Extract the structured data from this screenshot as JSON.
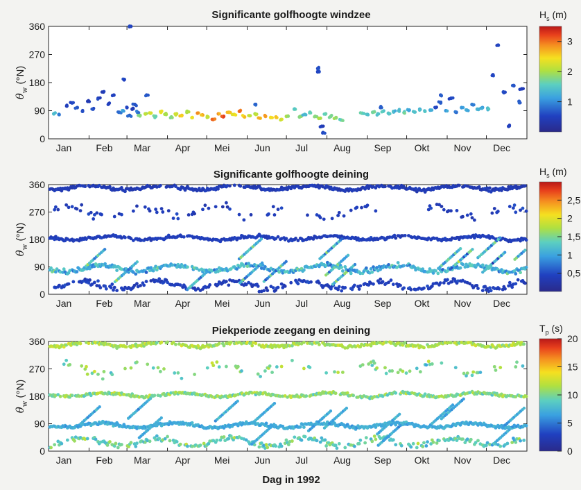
{
  "xlabel": "Dag in 1992",
  "chart_data": [
    {
      "type": "scatter",
      "title": "Significante golfhoogte windzee",
      "ylabel": "θw (°N)",
      "ylabel_main": "θ",
      "ylabel_sub": "w",
      "ylabel_unit": " (°N)",
      "xlim": [
        0,
        366
      ],
      "ylim": [
        0,
        360
      ],
      "yticks": [
        "0",
        "90",
        "180",
        "270",
        "360"
      ],
      "colorbar": {
        "label_main": "H",
        "label_sub": "s",
        "label_unit": " (m)",
        "range": [
          0,
          3.5
        ],
        "ticks": [
          "1",
          "2",
          "3"
        ]
      },
      "series_note": "windzee",
      "series": [
        {
          "x": [
            4,
            8,
            14,
            18,
            22,
            26,
            30,
            34,
            38,
            42,
            46,
            50,
            54,
            57,
            60,
            62,
            64,
            66,
            68
          ],
          "y": [
            80,
            78,
            105,
            115,
            100,
            88,
            120,
            95,
            130,
            150,
            112,
            140,
            85,
            90,
            100,
            75,
            95,
            110,
            85
          ],
          "c": [
            1.4,
            0.8,
            0.5,
            0.6,
            0.7,
            0.6,
            0.4,
            0.6,
            0.5,
            0.4,
            0.5,
            0.5,
            0.8,
            1.2,
            0.5,
            0.7,
            0.4,
            0.6,
            0.9
          ]
        },
        {
          "x": [
            70,
            74,
            78,
            82,
            86,
            90,
            94,
            98,
            102,
            106,
            110,
            114,
            118,
            122,
            126,
            130,
            134,
            138,
            142,
            146,
            150,
            154,
            158,
            162,
            166,
            170,
            174,
            178,
            182
          ],
          "y": [
            75,
            80,
            82,
            72,
            85,
            78,
            70,
            80,
            75,
            88,
            68,
            82,
            76,
            70,
            62,
            80,
            72,
            85,
            78,
            88,
            70,
            74,
            80,
            66,
            72,
            68,
            70,
            62,
            72
          ],
          "c": [
            1.8,
            2.0,
            2.2,
            1.6,
            2.4,
            2.0,
            1.8,
            2.2,
            2.6,
            2.0,
            2.4,
            2.8,
            2.6,
            2.2,
            3.0,
            2.8,
            3.2,
            2.6,
            2.4,
            3.0,
            2.6,
            2.2,
            2.0,
            2.6,
            2.8,
            2.4,
            2.6,
            2.2,
            2.0
          ]
        },
        {
          "x": [
            188,
            192,
            196,
            200,
            204,
            208,
            212,
            216,
            220,
            224
          ],
          "y": [
            95,
            70,
            78,
            85,
            72,
            66,
            80,
            72,
            68,
            60
          ],
          "c": [
            1.6,
            1.8,
            1.4,
            1.6,
            1.8,
            2.0,
            1.6,
            1.8,
            1.9,
            1.7
          ]
        },
        {
          "x": [
            240,
            244,
            248,
            252,
            256,
            260,
            264,
            268,
            272,
            276,
            280,
            284,
            288,
            292
          ],
          "y": [
            82,
            78,
            85,
            80,
            88,
            82,
            86,
            90,
            84,
            92,
            86,
            95,
            88,
            92
          ],
          "c": [
            1.6,
            1.5,
            1.7,
            1.4,
            1.6,
            1.5,
            1.3,
            1.4,
            1.6,
            1.2,
            1.4,
            1.3,
            1.5,
            1.2
          ]
        },
        {
          "x": [
            296,
            300,
            304,
            308,
            312,
            316,
            320,
            324,
            328,
            332,
            336,
            340,
            344,
            348,
            352,
            356,
            360,
            362
          ],
          "y": [
            100,
            115,
            90,
            130,
            85,
            100,
            92,
            110,
            95,
            100,
            98,
            205,
            300,
            150,
            40,
            170,
            120,
            160
          ],
          "c": [
            0.6,
            0.7,
            1.2,
            0.6,
            0.8,
            1.1,
            1.2,
            0.9,
            1.3,
            1.1,
            1.4,
            0.5,
            0.5,
            0.6,
            0.5,
            0.6,
            0.7,
            0.5
          ]
        },
        {
          "x": [
            58,
            63,
            75,
            206,
            207,
            210,
            209,
            158,
            254,
            300
          ],
          "y": [
            190,
            360,
            140,
            225,
            215,
            20,
            40,
            110,
            100,
            140
          ],
          "c": [
            0.6,
            0.5,
            0.6,
            0.6,
            0.6,
            0.6,
            0.5,
            0.8,
            0.7,
            0.6
          ]
        }
      ]
    },
    {
      "type": "scatter",
      "title": "Significante golfhoogte deining",
      "ylabel": "θw (°N)",
      "ylabel_main": "θ",
      "ylabel_sub": "w",
      "ylabel_unit": " (°N)",
      "xlim": [
        0,
        366
      ],
      "ylim": [
        0,
        360
      ],
      "yticks": [
        "0",
        "90",
        "180",
        "270",
        "360"
      ],
      "colorbar": {
        "label_main": "H",
        "label_sub": "s",
        "label_unit": " (m)",
        "range": [
          0,
          3
        ],
        "ticks": [
          "0,5",
          "1",
          "1,5",
          "2",
          "2,5"
        ]
      },
      "bands": [
        {
          "y_center": 350,
          "spread": 14,
          "c_center": 0.35,
          "c_spread": 0.15,
          "density": 1.0
        },
        {
          "y_center": 185,
          "spread": 12,
          "c_center": 0.4,
          "c_spread": 0.15,
          "density": 0.9
        },
        {
          "y_center": 85,
          "spread": 20,
          "c_center": 1.1,
          "c_spread": 0.6,
          "density": 0.9
        },
        {
          "y_center": 30,
          "spread": 25,
          "c_center": 0.4,
          "c_spread": 0.2,
          "density": 0.6
        },
        {
          "y_center": 270,
          "spread": 35,
          "c_center": 0.4,
          "c_spread": 0.2,
          "density": 0.25
        }
      ]
    },
    {
      "type": "scatter",
      "title": "Piekperiode zeegang en deining",
      "ylabel": "θw (°N)",
      "ylabel_main": "θ",
      "ylabel_sub": "w",
      "ylabel_unit": " (°N)",
      "xlim": [
        0,
        366
      ],
      "ylim": [
        0,
        360
      ],
      "yticks": [
        "0",
        "90",
        "180",
        "270",
        "360"
      ],
      "colorbar": {
        "label_main": "T",
        "label_sub": "p",
        "label_unit": " (s)",
        "range": [
          0,
          20
        ],
        "ticks": [
          "0",
          "5",
          "10",
          "15",
          "20"
        ]
      },
      "bands": [
        {
          "y_center": 350,
          "spread": 14,
          "c_center": 11.5,
          "c_spread": 2.5,
          "density": 0.9
        },
        {
          "y_center": 185,
          "spread": 12,
          "c_center": 10.5,
          "c_spread": 3,
          "density": 0.85
        },
        {
          "y_center": 85,
          "spread": 14,
          "c_center": 7.0,
          "c_spread": 1.5,
          "density": 1.0
        },
        {
          "y_center": 30,
          "spread": 25,
          "c_center": 9.0,
          "c_spread": 4,
          "density": 0.6
        },
        {
          "y_center": 270,
          "spread": 35,
          "c_center": 10.0,
          "c_spread": 3.5,
          "density": 0.25
        }
      ]
    }
  ],
  "months": [
    "Jan",
    "Feb",
    "Mar",
    "Apr",
    "Mei",
    "Jun",
    "Jul",
    "Aug",
    "Sep",
    "Okt",
    "Nov",
    "Dec"
  ],
  "month_starts": [
    0,
    31,
    60,
    91,
    121,
    152,
    182,
    213,
    244,
    274,
    305,
    335
  ]
}
